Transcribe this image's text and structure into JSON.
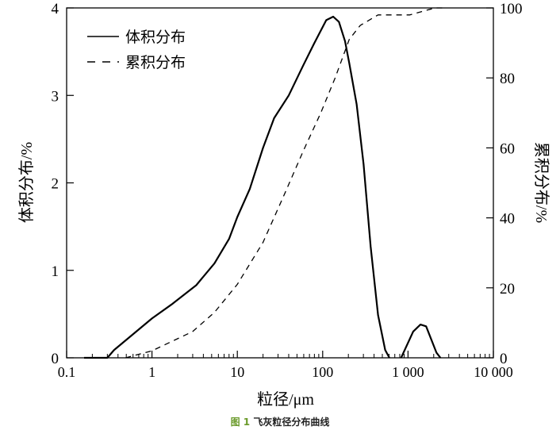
{
  "chart_data": {
    "type": "line",
    "xlabel": "粒径/μm",
    "ylabel": "体积分布/%",
    "y2label": "累积分布/%",
    "xscale": "log",
    "xlim": [
      0.1,
      10000
    ],
    "ylim": [
      0,
      4
    ],
    "y2lim": [
      0,
      100
    ],
    "xticks": [
      "0.1",
      "1",
      "10",
      "100",
      "1 000",
      "10 000"
    ],
    "yticks": [
      "0",
      "1",
      "2",
      "3",
      "4"
    ],
    "y2ticks": [
      "0",
      "20",
      "40",
      "60",
      "80",
      "100"
    ],
    "grid": false,
    "legend_position": "top-left",
    "series": [
      {
        "name": "体积分布",
        "axis": "left",
        "style": "solid",
        "points": [
          [
            0.16,
            0
          ],
          [
            0.3,
            0
          ],
          [
            0.36,
            0.09
          ],
          [
            1,
            0.45
          ],
          [
            1.7,
            0.61
          ],
          [
            3.3,
            0.83
          ],
          [
            5.4,
            1.08
          ],
          [
            8,
            1.36
          ],
          [
            10,
            1.61
          ],
          [
            14,
            1.93
          ],
          [
            20,
            2.4
          ],
          [
            27,
            2.74
          ],
          [
            40,
            3.0
          ],
          [
            59,
            3.34
          ],
          [
            79,
            3.59
          ],
          [
            110,
            3.86
          ],
          [
            133,
            3.9
          ],
          [
            155,
            3.84
          ],
          [
            183,
            3.62
          ],
          [
            205,
            3.37
          ],
          [
            250,
            2.9
          ],
          [
            302,
            2.21
          ],
          [
            365,
            1.27
          ],
          [
            445,
            0.49
          ],
          [
            540,
            0.09
          ],
          [
            605,
            0
          ]
        ]
      },
      {
        "name": "",
        "axis": "left",
        "style": "solid",
        "points": [
          [
            830,
            0
          ],
          [
            1150,
            0.3
          ],
          [
            1400,
            0.38
          ],
          [
            1630,
            0.36
          ],
          [
            2150,
            0.06
          ],
          [
            2400,
            0
          ]
        ]
      },
      {
        "name": "累积分布",
        "axis": "right",
        "style": "dashed",
        "points": [
          [
            0.49,
            0
          ],
          [
            1,
            2
          ],
          [
            3,
            7.5
          ],
          [
            5.4,
            13
          ],
          [
            10,
            21
          ],
          [
            20,
            33
          ],
          [
            36,
            47
          ],
          [
            59,
            59
          ],
          [
            95,
            70
          ],
          [
            140,
            80
          ],
          [
            205,
            91
          ],
          [
            275,
            95
          ],
          [
            445,
            98
          ],
          [
            1050,
            98
          ],
          [
            2070,
            100
          ],
          [
            2700,
            100
          ]
        ]
      }
    ]
  },
  "caption": {
    "label": "图 1",
    "text": "飞灰粒径分布曲线"
  }
}
